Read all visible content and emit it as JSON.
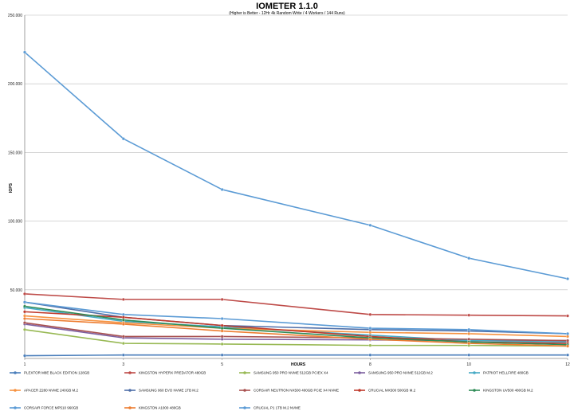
{
  "chart_data": {
    "type": "line",
    "title": "IOMETER 1.1.0",
    "subtitle": "(Higher is Better - 12Hr 4k Random Write / 4 Workers / 144 Runs)",
    "xlabel": "HOURS",
    "ylabel": "IOPS",
    "x": [
      1,
      3,
      5,
      8,
      10,
      12
    ],
    "ylim": [
      0,
      250000
    ],
    "yticks": [
      0,
      50000,
      100000,
      150000,
      200000,
      250000
    ],
    "ytick_labels": [
      "",
      "50.000",
      "100.000",
      "150.000",
      "200.000",
      "250.000"
    ],
    "grid": "horizontal",
    "legend_position": "bottom",
    "series": [
      {
        "name": "PLEXTOR M8E BLACK EDITION 128GB",
        "color": "#4a7ebb",
        "values": [
          2000,
          2500,
          2500,
          2500,
          2500,
          2500
        ]
      },
      {
        "name": "KINGSTON HYPERX PREDATOR 480GB",
        "color": "#be4b48",
        "values": [
          47000,
          43000,
          43000,
          32000,
          31500,
          31000
        ]
      },
      {
        "name": "SAMSUNG 950 PRO NVME 512GB PCIEX X4",
        "color": "#98b954",
        "values": [
          21000,
          11000,
          10500,
          9500,
          9500,
          9000
        ]
      },
      {
        "name": "SAMSUNG 950 PRO NVME 512GB M.2",
        "color": "#7d60a0",
        "values": [
          25000,
          15000,
          14000,
          13500,
          13000,
          13000
        ]
      },
      {
        "name": "PATRIOT HELLFIRE 480GB",
        "color": "#46aac5",
        "values": [
          37000,
          27000,
          23000,
          17000,
          13000,
          12000
        ]
      },
      {
        "name": "APACER Z280 NVME 240GB M.2",
        "color": "#f69240",
        "values": [
          31000,
          26000,
          22000,
          19000,
          18000,
          16000
        ]
      },
      {
        "name": "SAMSUNG 960 EVO NVME 1TB M.2",
        "color": "#4f6fa8",
        "values": [
          41000,
          30000,
          24000,
          21000,
          20000,
          18000
        ]
      },
      {
        "name": "CORSAIR NEUTRON NX500 400GB PCIE X4 NVME",
        "color": "#a8504f",
        "values": [
          26000,
          16000,
          16000,
          15000,
          14000,
          13000
        ]
      },
      {
        "name": "CRUCIAL MX500 500GB M.2",
        "color": "#c0392b",
        "values": [
          34000,
          30000,
          24000,
          16000,
          12000,
          11000
        ]
      },
      {
        "name": "KINGSTON UV500 480GB M.2",
        "color": "#2e8b57",
        "values": [
          38000,
          28000,
          22000,
          15000,
          12000,
          10000
        ]
      },
      {
        "name": "CORSAIR FORCE MP510 960GB",
        "color": "#5b9bd5",
        "values": [
          41000,
          32000,
          29000,
          22000,
          21000,
          18000
        ]
      },
      {
        "name": "KINGSTON A1000 480GB",
        "color": "#ed7d31",
        "values": [
          29000,
          25000,
          20000,
          14000,
          11000,
          9000
        ]
      },
      {
        "name": "CRUCIAL P1 1TB M.2 NVME",
        "color": "#5b9bd5",
        "values": [
          223000,
          160000,
          123000,
          97000,
          73000,
          58000
        ]
      }
    ]
  }
}
